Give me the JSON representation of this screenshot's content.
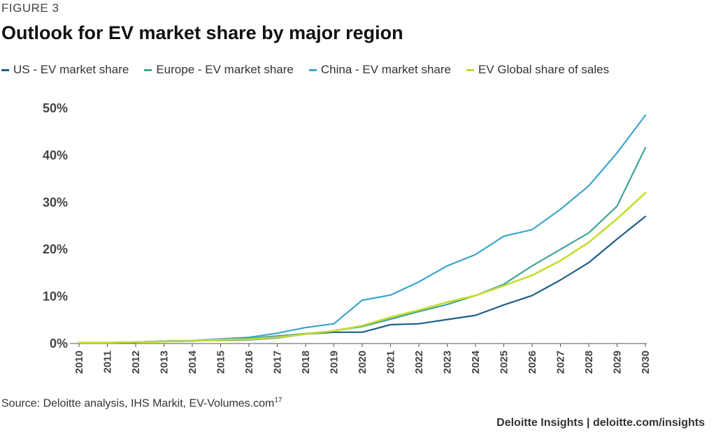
{
  "figure_label": "FIGURE 3",
  "source": {
    "text": "Source: Deloitte analysis, IHS Markit, EV-Volumes.com",
    "note_ref": "17"
  },
  "footer": "Deloitte Insights | deloitte.com/insights",
  "chart_data": {
    "type": "line",
    "title": "Outlook for EV market share by major region",
    "xlabel": "",
    "ylabel": "",
    "x": [
      "2010",
      "2011",
      "2012",
      "2013",
      "2014",
      "2015",
      "2016",
      "2017",
      "2018",
      "2019",
      "2020",
      "2021",
      "2022",
      "2023",
      "2024",
      "2025",
      "2026",
      "2027",
      "2028",
      "2029",
      "2030"
    ],
    "yticks": [
      "0%",
      "10%",
      "20%",
      "30%",
      "40%",
      "50%"
    ],
    "ylim": [
      0,
      50
    ],
    "grid": false,
    "legend_position": "top",
    "series": [
      {
        "name": "US - EV market share",
        "color": "#1f5f8b",
        "values": [
          0.2,
          0.2,
          0.3,
          0.5,
          0.6,
          0.7,
          0.8,
          1.2,
          2.0,
          2.4,
          2.4,
          4.0,
          4.2,
          5.1,
          6.0,
          8.2,
          10.2,
          13.5,
          17.2,
          22.2,
          27.0
        ]
      },
      {
        "name": "Europe - EV market share",
        "color": "#3fa49a",
        "values": [
          0.2,
          0.2,
          0.3,
          0.5,
          0.6,
          0.9,
          1.1,
          1.6,
          2.1,
          2.7,
          3.6,
          5.2,
          6.8,
          8.3,
          10.2,
          12.6,
          16.5,
          20.0,
          23.5,
          29.2,
          41.6
        ]
      },
      {
        "name": "China - EV market share",
        "color": "#3aa5cd",
        "values": [
          0.2,
          0.2,
          0.3,
          0.5,
          0.6,
          1.0,
          1.3,
          2.2,
          3.4,
          4.2,
          9.2,
          10.3,
          13.1,
          16.5,
          18.9,
          22.8,
          24.2,
          28.5,
          33.5,
          40.5,
          48.5
        ]
      },
      {
        "name": "EV Global share of sales",
        "color": "#c7dc2e",
        "values": [
          0.2,
          0.2,
          0.3,
          0.4,
          0.5,
          0.8,
          0.9,
          1.3,
          2.0,
          2.7,
          3.8,
          5.6,
          7.1,
          8.8,
          10.2,
          12.3,
          14.5,
          17.6,
          21.5,
          26.5,
          32.0
        ]
      }
    ]
  }
}
